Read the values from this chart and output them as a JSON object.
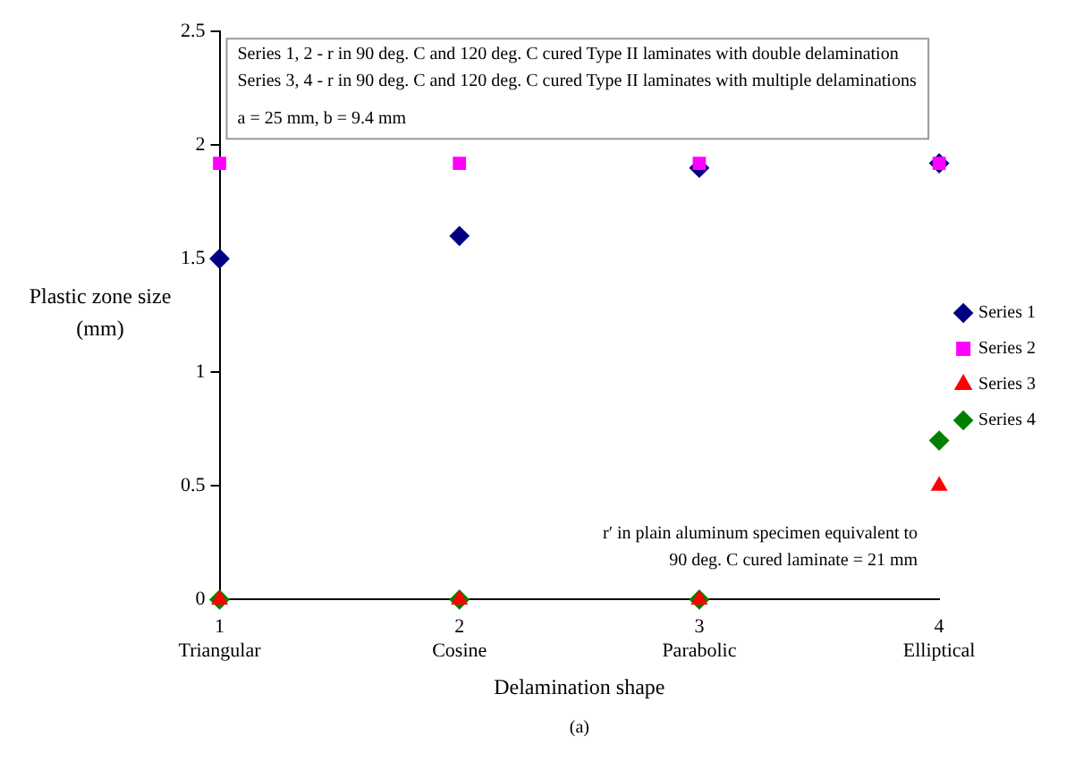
{
  "chart_data": {
    "type": "scatter",
    "xlabel": "Delamination shape",
    "ylabel": "Plastic zone size\n(mm)",
    "x": [
      1,
      2,
      3,
      4
    ],
    "series": [
      {
        "name": "Series 1",
        "color": "#000080",
        "values": [
          1.5,
          1.6,
          1.9,
          1.92
        ],
        "marker": "diamond"
      },
      {
        "name": "Series 2",
        "color": "#ff00ff",
        "values": [
          1.92,
          1.92,
          1.92,
          1.92
        ],
        "marker": "square"
      },
      {
        "name": "Series 3",
        "color": "#ff0000",
        "values": [
          0,
          0,
          0,
          0.5
        ],
        "marker": "triangle"
      },
      {
        "name": "Series 4",
        "color": "#008000",
        "values": [
          0,
          0,
          0,
          0.7
        ],
        "marker": "diamond"
      }
    ],
    "xlim": [
      1,
      4
    ],
    "xticks": [
      {
        "value": 1,
        "label": "1\nTriangular"
      },
      {
        "value": 2,
        "label": "2\nCosine"
      },
      {
        "value": 3,
        "label": "3\nParabolic"
      },
      {
        "value": 4,
        "label": "4\nElliptical"
      }
    ],
    "ylim": [
      0,
      2.5
    ],
    "yticks": [
      0,
      0.5,
      1,
      1.5,
      2,
      2.5
    ],
    "grid": false,
    "legend": "right",
    "annotations": [
      "Series 1, 2 - r in 90 deg. C and 120 deg. C cured Type II laminates with double delamination\nSeries 3, 4 - r in 90 deg. C and 120 deg. C cured Type II laminates with multiple delaminations",
      "a = 25 mm, b = 9.4 mm",
      "r′ in plain aluminum specimen equivalent to\n90 deg. C cured laminate = 21 mm",
      "(a)"
    ]
  }
}
